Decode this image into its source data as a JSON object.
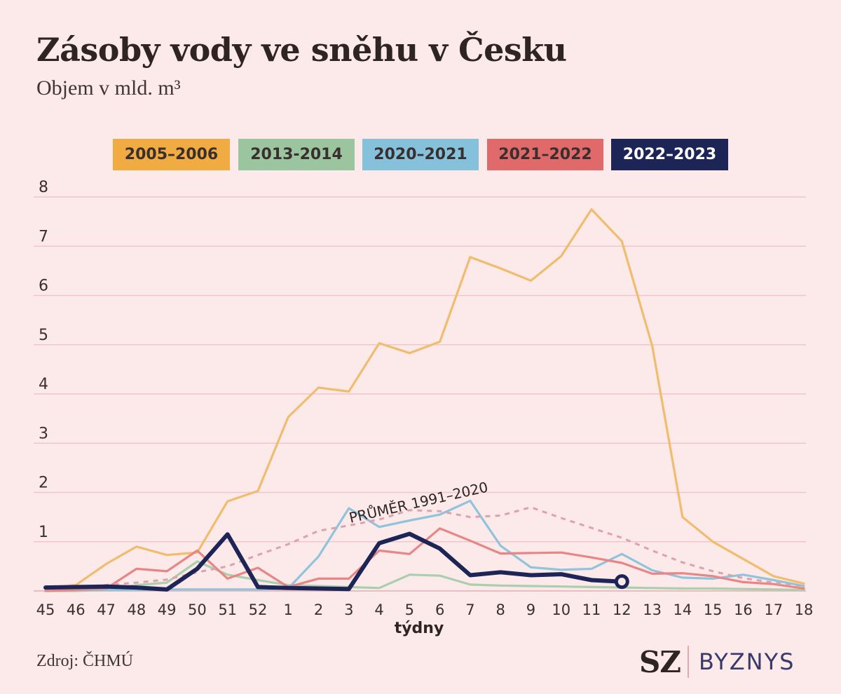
{
  "header": {
    "title": "Zásoby vody ve sněhu v Česku",
    "subtitle": "Objem v mld. m³"
  },
  "footer": {
    "source": "Zdroj: ČHMÚ",
    "logo_sz": "SZ",
    "logo_byznys": "BYZNYS"
  },
  "chart_data": {
    "type": "line",
    "xlabel": "týdny",
    "ylabel": "",
    "ylim": [
      0,
      8
    ],
    "yticks": [
      1,
      2,
      3,
      4,
      5,
      6,
      7,
      8
    ],
    "grid": true,
    "legend_position": "top",
    "categories": [
      "45",
      "46",
      "47",
      "48",
      "49",
      "50",
      "51",
      "52",
      "1",
      "2",
      "3",
      "4",
      "5",
      "6",
      "7",
      "8",
      "9",
      "10",
      "11",
      "12",
      "13",
      "14",
      "15",
      "16",
      "17",
      "18"
    ],
    "series": [
      {
        "name": "2005–2006",
        "color": "#f0bd6e",
        "legend_color": "#f0ab42",
        "legend_text_dark": false,
        "values": [
          0.05,
          0.12,
          0.55,
          0.9,
          0.73,
          0.78,
          1.82,
          2.03,
          3.53,
          4.13,
          4.05,
          5.03,
          4.83,
          5.06,
          6.78,
          6.55,
          6.3,
          6.8,
          7.75,
          7.1,
          4.98,
          1.5,
          1.0,
          0.65,
          0.3,
          0.15
        ]
      },
      {
        "name": "2013-2014",
        "color": "#a9cfad",
        "legend_color": "#9bc59f",
        "legend_text_dark": false,
        "values": [
          0.0,
          0.0,
          0.02,
          0.12,
          0.17,
          0.6,
          0.33,
          0.22,
          0.12,
          0.1,
          0.08,
          0.06,
          0.33,
          0.31,
          0.13,
          0.11,
          0.1,
          0.09,
          0.08,
          0.07,
          0.06,
          0.05,
          0.05,
          0.04,
          0.03,
          0.02
        ]
      },
      {
        "name": "2020–2021",
        "color": "#8fc4da",
        "legend_color": "#85c1db",
        "legend_text_dark": false,
        "values": [
          0.02,
          0.02,
          0.02,
          0.02,
          0.03,
          0.03,
          0.03,
          0.03,
          0.05,
          0.7,
          1.68,
          1.3,
          1.43,
          1.55,
          1.83,
          0.92,
          0.48,
          0.43,
          0.45,
          0.75,
          0.42,
          0.27,
          0.25,
          0.33,
          0.22,
          0.1
        ]
      },
      {
        "name": "2021–2022",
        "color": "#e88585",
        "legend_color": "#e06969",
        "legend_text_dark": false,
        "values": [
          0.0,
          0.02,
          0.05,
          0.45,
          0.4,
          0.82,
          0.25,
          0.47,
          0.08,
          0.25,
          0.25,
          0.82,
          0.75,
          1.27,
          1.02,
          0.76,
          0.77,
          0.78,
          0.68,
          0.57,
          0.35,
          0.36,
          0.3,
          0.18,
          0.14,
          0.05
        ]
      },
      {
        "name": "PRŮMĚR 1991–2020",
        "color": "#dba3aa",
        "dashed": true,
        "in_legend": false,
        "values": [
          0.05,
          0.08,
          0.12,
          0.17,
          0.23,
          0.38,
          0.5,
          0.73,
          0.95,
          1.22,
          1.33,
          1.45,
          1.64,
          1.62,
          1.5,
          1.53,
          1.7,
          1.48,
          1.28,
          1.08,
          0.82,
          0.58,
          0.4,
          0.26,
          0.17,
          0.08
        ]
      },
      {
        "name": "2022–2023",
        "color": "#1d2456",
        "legend_color": "#1d2456",
        "legend_text_dark": true,
        "bold": true,
        "values": [
          0.07,
          0.08,
          0.09,
          0.07,
          0.03,
          0.45,
          1.15,
          0.08,
          0.06,
          0.05,
          0.04,
          0.97,
          1.16,
          0.86,
          0.32,
          0.38,
          0.32,
          0.34,
          0.22,
          0.19,
          null,
          null,
          null,
          null,
          null,
          null
        ]
      }
    ],
    "annotations": [
      {
        "text": "PRŮMĚR 1991–2020",
        "series": "PRŮMĚR 1991–2020"
      }
    ]
  }
}
